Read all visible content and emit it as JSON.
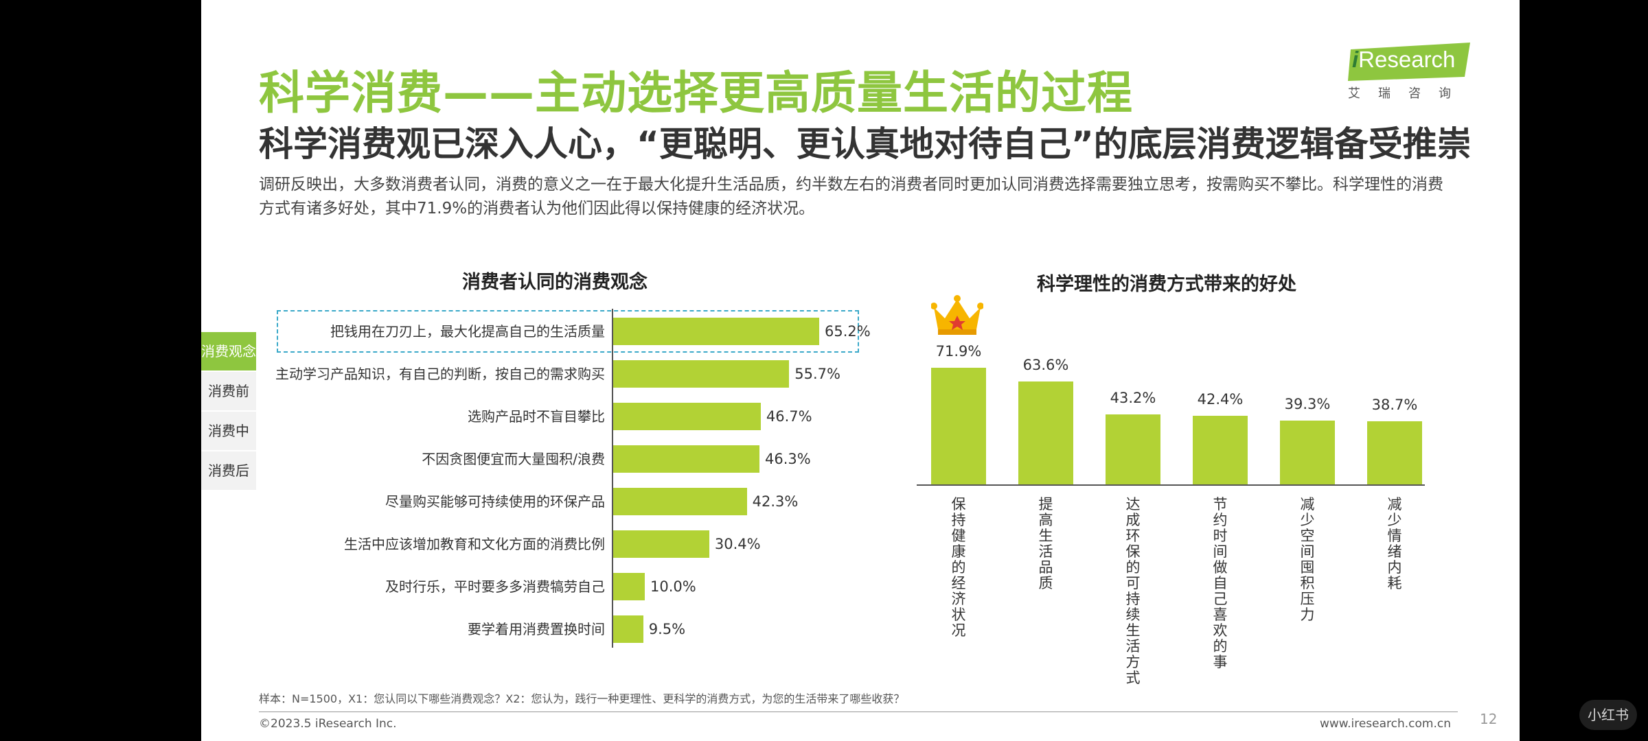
{
  "header": {
    "title": "科学消费——主动选择更高质量生活的过程",
    "subtitle": "科学消费观已深入人心，“更聪明、更认真地对待自己”的底层消费逻辑备受推崇",
    "intro": "调研反映出，大多数消费者认同，消费的意义之一在于最大化提升生活品质，约半数左右的消费者同时更加认同消费选择需要独立思考，按需购买不攀比。科学理性的消费方式有诸多好处，其中71.9%的消费者认为他们因此得以保持健康的经济状况。"
  },
  "logo": {
    "brand_i": "i",
    "brand_rest": "Research",
    "sub": "艾瑞咨询",
    "color": "#8ec63f"
  },
  "sidebar": {
    "tabs": [
      {
        "label": "消费观念",
        "active": true
      },
      {
        "label": "消费前",
        "active": false
      },
      {
        "label": "消费中",
        "active": false
      },
      {
        "label": "消费后",
        "active": false
      }
    ]
  },
  "chart_data": [
    {
      "type": "bar",
      "orientation": "horizontal",
      "title": "消费者认同的消费观念",
      "categories": [
        "把钱用在刀刃上，最大化提高自己的生活质量",
        "主动学习产品知识，有自己的判断，按自己的需求购买",
        "选购产品时不盲目攀比",
        "不因贪图便宜而大量囤积/浪费",
        "尽量购买能够可持续使用的环保产品",
        "生活中应该增加教育和文化方面的消费比例",
        "及时行乐，平时要多多消费犒劳自己",
        "要学着用消费置换时间"
      ],
      "values": [
        65.2,
        55.7,
        46.7,
        46.3,
        42.3,
        30.4,
        10.0,
        9.5
      ],
      "value_labels": [
        "65.2%",
        "55.7%",
        "46.7%",
        "46.3%",
        "42.3%",
        "30.4%",
        "10.0%",
        "9.5%"
      ],
      "highlighted_category": "把钱用在刀刃上，最大化提高自己的生活质量",
      "color": "#b2d235"
    },
    {
      "type": "bar",
      "orientation": "vertical",
      "title": "科学理性的消费方式带来的好处",
      "categories": [
        "保持健康的经济状况",
        "提高生活品质",
        "达成环保的可持续生活方式",
        "节约时间做自己喜欢的事",
        "减少空间囤积压力",
        "减少情绪内耗"
      ],
      "values": [
        71.9,
        63.6,
        43.2,
        42.4,
        39.3,
        38.7
      ],
      "value_labels": [
        "71.9%",
        "63.6%",
        "43.2%",
        "42.4%",
        "39.3%",
        "38.7%"
      ],
      "crown_on": "保持健康的经济状况",
      "color": "#b2d235"
    }
  ],
  "footer": {
    "note": "样本：N=1500，X1：您认同以下哪些消费观念？X2：您认为，践行一种更理性、更科学的消费方式，为您的生活带来了哪些收获？",
    "copyright": "©2023.5 iResearch Inc.",
    "website": "www.iresearch.com.cn",
    "page": "12"
  },
  "watermark": "小红书"
}
